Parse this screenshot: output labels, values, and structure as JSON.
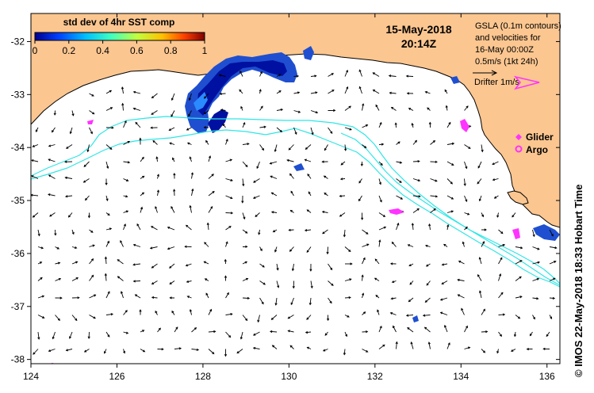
{
  "map": {
    "colorbar": {
      "title": "std dev of 4hr SST comp",
      "ticks": [
        "0",
        "0.2",
        "0.4",
        "0.6",
        "0.8",
        "1"
      ],
      "colors": [
        "#00008f",
        "#0040ff",
        "#00c0ff",
        "#40ffc0",
        "#c0ff40",
        "#ffc000",
        "#ff4000",
        "#800000"
      ]
    },
    "datetime": {
      "date": "15-May-2018",
      "time": "20:14Z"
    },
    "legend": {
      "gsla_lines": [
        "GSLA (0.1m contours)",
        "and velocities for",
        "16-May 00:00Z",
        "0.5m/s (1kt 24h)"
      ],
      "drifter": "Drifter 1m/s",
      "glider": "Glider",
      "argo": "Argo"
    },
    "credit": "© IMOS 22-May-2018 18:33 Hobart Time",
    "lon_ticks": [
      "124",
      "126",
      "128",
      "130",
      "132",
      "134",
      "136"
    ],
    "lat_ticks": [
      "-32",
      "-33",
      "-34",
      "-35",
      "-36",
      "-37",
      "-38"
    ],
    "colors": {
      "land": "#fbc690",
      "contour": "#2ee6e6",
      "markers": "#ff33ff",
      "vectors": "#000000"
    }
  }
}
